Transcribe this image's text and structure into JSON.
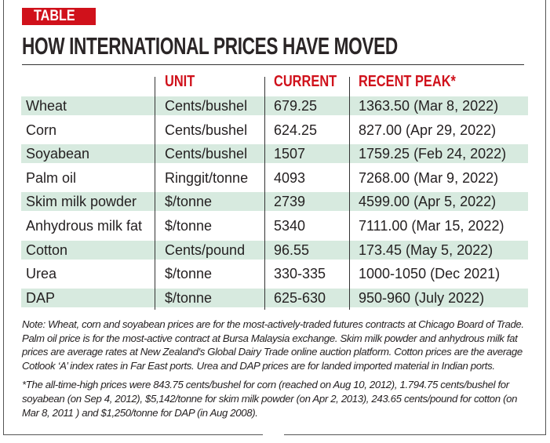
{
  "badge": "TABLE",
  "title": "HOW INTERNATIONAL PRICES HAVE MOVED",
  "columns": [
    "",
    "UNIT",
    "CURRENT",
    "RECENT PEAK*"
  ],
  "rows": [
    {
      "item": "Wheat",
      "unit": "Cents/bushel",
      "current": "679.25",
      "peak": "1363.50 (Mar 8, 2022)"
    },
    {
      "item": "Corn",
      "unit": "Cents/bushel",
      "current": "624.25",
      "peak": "827.00 (Apr 29, 2022)"
    },
    {
      "item": "Soyabean",
      "unit": "Cents/bushel",
      "current": "1507",
      "peak": "1759.25 (Feb 24, 2022)"
    },
    {
      "item": "Palm oil",
      "unit": "Ringgit/tonne",
      "current": "4093",
      "peak": "7268.00 (Mar 9, 2022)"
    },
    {
      "item": "Skim milk powder",
      "unit": "$/tonne",
      "current": "2739",
      "peak": "4599.00 (Apr 5, 2022)"
    },
    {
      "item": "Anhydrous milk fat",
      "unit": "$/tonne",
      "current": "5340",
      "peak": "7111.00 (Mar 15, 2022)"
    },
    {
      "item": "Cotton",
      "unit": "Cents/pound",
      "current": "96.55",
      "peak": "173.45 (May 5, 2022)"
    },
    {
      "item": "Urea",
      "unit": "$/tonne",
      "current": "330-335",
      "peak": "1000-1050 (Dec 2021)"
    },
    {
      "item": "DAP",
      "unit": "$/tonne",
      "current": "625-630",
      "peak": "950-960 (July 2022)"
    }
  ],
  "note": "Note: Wheat, corn and soyabean prices are for the most-actively-traded futures contracts at Chicago Board of Trade. Palm oil price is for the most-active contract at Bursa Malaysia exchange. Skim milk powder and anhydrous milk fat prices are average rates at New Zealand's Global Dairy Trade online auction platform. Cotton prices are the average Cotlook ‘A’ index rates in Far East ports. Urea and DAP prices are for landed imported material in Indian ports.",
  "footnote": "*The all-time-high prices were 843.75 cents/bushel for corn (reached on Aug 10, 2012), 1.794.75 cents/bushel for soyabean (on Sep 4, 2012), $5,142/tonne for skim milk powder (on Apr 2, 2013), 243.65 cents/pound for cotton (on Mar 8, 2011 ) and $1,250/tonne for DAP (in Aug 2008).",
  "colors": {
    "accent": "#d0111b",
    "row_band": "#d7eadf"
  }
}
